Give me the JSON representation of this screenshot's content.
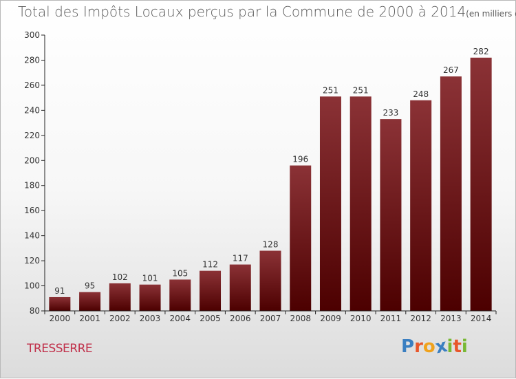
{
  "title": "Total des Impôts Locaux perçus par la Commune de 2000 à 2014",
  "title_unit": "(en milliers d'€)",
  "commune": "TRESSERRE",
  "logo": {
    "letters": [
      "P",
      "r",
      "o",
      "x",
      "i",
      "t",
      "i"
    ],
    "colors": [
      "#3a7fc1",
      "#e8562a",
      "#f0a21c",
      "#3a7fc1",
      "#78b833",
      "#e8562a",
      "#78b833"
    ]
  },
  "colors": {
    "bar_top": "#8b3236",
    "bar_bottom": "#4c0000",
    "axis": "#222222",
    "title": "#5a5a5a",
    "commune": "#c0304a"
  },
  "chart_data": {
    "type": "bar",
    "title": "Total des Impôts Locaux perçus par la Commune de 2000 à 2014",
    "unit": "(en milliers d'€)",
    "categories": [
      "2000",
      "2001",
      "2002",
      "2003",
      "2004",
      "2005",
      "2006",
      "2007",
      "2008",
      "2009",
      "2010",
      "2011",
      "2012",
      "2013",
      "2014"
    ],
    "values": [
      91,
      95,
      102,
      101,
      105,
      112,
      117,
      128,
      196,
      251,
      251,
      233,
      248,
      267,
      282
    ],
    "ylim": [
      80,
      300
    ],
    "yticks": [
      80,
      100,
      120,
      140,
      160,
      180,
      200,
      220,
      240,
      260,
      280,
      300
    ],
    "grid": false,
    "data_labels": true
  }
}
